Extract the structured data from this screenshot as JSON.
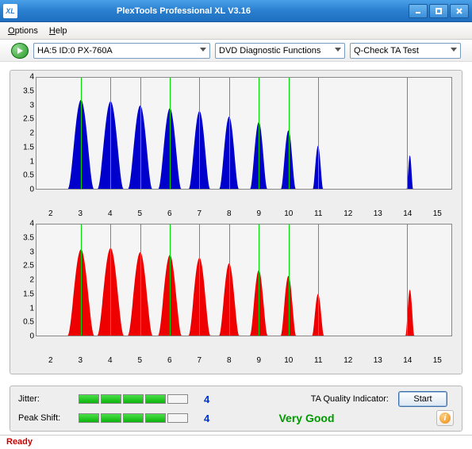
{
  "window": {
    "title": "PlexTools Professional XL V3.16"
  },
  "menu": {
    "options": "Options",
    "help": "Help"
  },
  "toolbar": {
    "device": "HA:5 ID:0   PX-760A",
    "function": "DVD Diagnostic Functions",
    "test": "Q-Check TA Test"
  },
  "charts": {
    "y_ticks": [
      0,
      0.5,
      1,
      1.5,
      2,
      2.5,
      3,
      3.5,
      4
    ],
    "x_ticks": [
      2,
      3,
      4,
      5,
      6,
      7,
      8,
      9,
      10,
      11,
      12,
      13,
      14,
      15
    ],
    "x_min": 1.5,
    "x_max": 15.5,
    "y_min": 0,
    "y_max": 4,
    "grid_x": [
      3,
      4,
      5,
      6,
      7,
      8,
      9,
      10,
      11,
      14
    ],
    "plot_bg": "#f5f5f5",
    "group_bg": "#eeeeee",
    "grid_color": "#00dd00",
    "top": {
      "color": "#0000cc",
      "peaks": [
        {
          "c": 3,
          "h": 3.2,
          "w": 0.88
        },
        {
          "c": 4,
          "h": 3.15,
          "w": 0.88
        },
        {
          "c": 5,
          "h": 3.0,
          "w": 0.82
        },
        {
          "c": 6,
          "h": 2.9,
          "w": 0.78
        },
        {
          "c": 7,
          "h": 2.8,
          "w": 0.72
        },
        {
          "c": 8,
          "h": 2.6,
          "w": 0.66
        },
        {
          "c": 9,
          "h": 2.4,
          "w": 0.58
        },
        {
          "c": 10,
          "h": 2.1,
          "w": 0.5
        },
        {
          "c": 11,
          "h": 1.55,
          "w": 0.35
        },
        {
          "c": 14.1,
          "h": 1.2,
          "w": 0.22
        }
      ]
    },
    "bottom": {
      "color": "#ee0000",
      "peaks": [
        {
          "c": 3,
          "h": 3.1,
          "w": 0.9
        },
        {
          "c": 4,
          "h": 3.15,
          "w": 0.9
        },
        {
          "c": 5,
          "h": 3.0,
          "w": 0.84
        },
        {
          "c": 6,
          "h": 2.9,
          "w": 0.8
        },
        {
          "c": 7,
          "h": 2.8,
          "w": 0.74
        },
        {
          "c": 8,
          "h": 2.6,
          "w": 0.68
        },
        {
          "c": 9,
          "h": 2.35,
          "w": 0.6
        },
        {
          "c": 10,
          "h": 2.15,
          "w": 0.52
        },
        {
          "c": 11,
          "h": 1.5,
          "w": 0.4
        },
        {
          "c": 14.1,
          "h": 1.65,
          "w": 0.3
        }
      ]
    }
  },
  "bottom_panel": {
    "jitter_label": "Jitter:",
    "jitter_value": "4",
    "jitter_segments": 4,
    "jitter_total": 5,
    "peak_label": "Peak Shift:",
    "peak_value": "4",
    "peak_segments": 4,
    "peak_total": 5,
    "ta_label": "TA Quality Indicator:",
    "ta_value": "Very Good",
    "start": "Start"
  },
  "status": "Ready",
  "colors": {
    "segment_on": "#0cb40c",
    "value_blue": "#0033cc",
    "ta_green": "#009900",
    "status_red": "#cc0000"
  }
}
